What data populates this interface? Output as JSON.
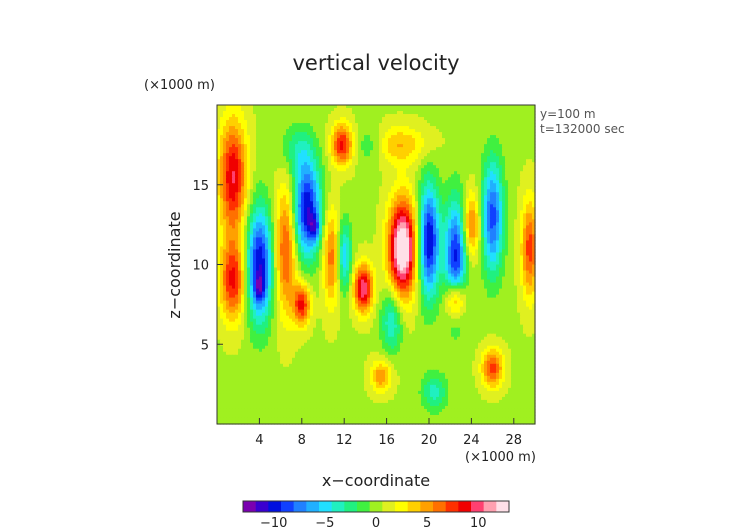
{
  "chart_data": {
    "type": "heatmap",
    "title": "vertical velocity",
    "xlabel": "x−coordinate",
    "ylabel": "z−coordinate",
    "x_unit": "(×1000 m)",
    "y_unit": "(×1000 m)",
    "xlim": [
      0,
      30
    ],
    "ylim": [
      0,
      20
    ],
    "x_ticks": [
      4,
      8,
      12,
      16,
      20,
      24,
      28
    ],
    "x_tick_labels": [
      "4",
      "8",
      "12",
      "16",
      "20",
      "24",
      "28"
    ],
    "y_ticks": [
      5,
      10,
      15
    ],
    "y_tick_labels": [
      "5",
      "10",
      "15"
    ],
    "annotations": [
      "y=100 m",
      "t=132000 sec"
    ],
    "colorbar": {
      "range": [
        -13,
        13
      ],
      "ticks": [
        -10,
        -5,
        0,
        5,
        10
      ],
      "tick_labels": [
        "−10",
        "−5",
        "0",
        "5",
        "10"
      ],
      "colors": [
        "#7a00b0",
        "#3a00d0",
        "#0010e0",
        "#1040ff",
        "#2080ff",
        "#20b0ff",
        "#20e0ff",
        "#20f0c0",
        "#20f080",
        "#40f040",
        "#a0f020",
        "#e0f020",
        "#ffff00",
        "#ffd000",
        "#ffa000",
        "#ff7000",
        "#ff3000",
        "#f00000",
        "#ff4070",
        "#ffa0b0",
        "#ffe0e8"
      ]
    },
    "features": [
      {
        "x": 1.5,
        "z": 15.5,
        "value": 9,
        "sx": 1.3,
        "sz": 3.5
      },
      {
        "x": 1.5,
        "z": 9,
        "value": 8,
        "sx": 1.2,
        "sz": 2.5
      },
      {
        "x": 4,
        "z": 10,
        "value": -11,
        "sx": 1.2,
        "sz": 3.5
      },
      {
        "x": 4,
        "z": 8.5,
        "value": -4,
        "sx": 0.5,
        "sz": 0.8
      },
      {
        "x": 6.5,
        "z": 11,
        "value": 7,
        "sx": 1.0,
        "sz": 4
      },
      {
        "x": 8.5,
        "z": 13.5,
        "value": -11,
        "sx": 1.3,
        "sz": 3
      },
      {
        "x": 9.2,
        "z": 12.3,
        "value": -5,
        "sx": 0.5,
        "sz": 0.8
      },
      {
        "x": 10.8,
        "z": 10.5,
        "value": 6,
        "sx": 0.8,
        "sz": 3
      },
      {
        "x": 11.8,
        "z": 17.5,
        "value": 8,
        "sx": 1.0,
        "sz": 1.3
      },
      {
        "x": 8,
        "z": 7.5,
        "value": 8,
        "sx": 0.8,
        "sz": 1.3
      },
      {
        "x": 12,
        "z": 10.5,
        "value": -6,
        "sx": 0.7,
        "sz": 2.2
      },
      {
        "x": 13.8,
        "z": 8.5,
        "value": 10,
        "sx": 0.9,
        "sz": 1.5
      },
      {
        "x": 17.5,
        "z": 11,
        "value": 14,
        "sx": 1.3,
        "sz": 3
      },
      {
        "x": 16.5,
        "z": 6.5,
        "value": -5,
        "sx": 1.0,
        "sz": 2
      },
      {
        "x": 20,
        "z": 11.5,
        "value": -11,
        "sx": 1.0,
        "sz": 3.5
      },
      {
        "x": 22.5,
        "z": 10.5,
        "value": -10,
        "sx": 1.0,
        "sz": 3.5
      },
      {
        "x": 24,
        "z": 12.5,
        "value": 6,
        "sx": 0.8,
        "sz": 2
      },
      {
        "x": 26,
        "z": 13,
        "value": -9,
        "sx": 1.0,
        "sz": 3.5
      },
      {
        "x": 22.5,
        "z": 7.8,
        "value": 8,
        "sx": 0.9,
        "sz": 1.2
      },
      {
        "x": 17,
        "z": 17.5,
        "value": 4,
        "sx": 2.8,
        "sz": 1.2
      },
      {
        "x": 14.5,
        "z": 17.5,
        "value": -3,
        "sx": 1.5,
        "sz": 1.2
      },
      {
        "x": 7.5,
        "z": 17.2,
        "value": -3,
        "sx": 1.5,
        "sz": 1.5
      },
      {
        "x": 20.5,
        "z": 2,
        "value": -4,
        "sx": 1.2,
        "sz": 1.2
      },
      {
        "x": 26,
        "z": 3.5,
        "value": 7,
        "sx": 1.0,
        "sz": 1.2
      },
      {
        "x": 15.5,
        "z": 3,
        "value": 5,
        "sx": 1.0,
        "sz": 1.0
      },
      {
        "x": 29.5,
        "z": 11,
        "value": 7,
        "sx": 0.8,
        "sz": 3
      }
    ]
  }
}
